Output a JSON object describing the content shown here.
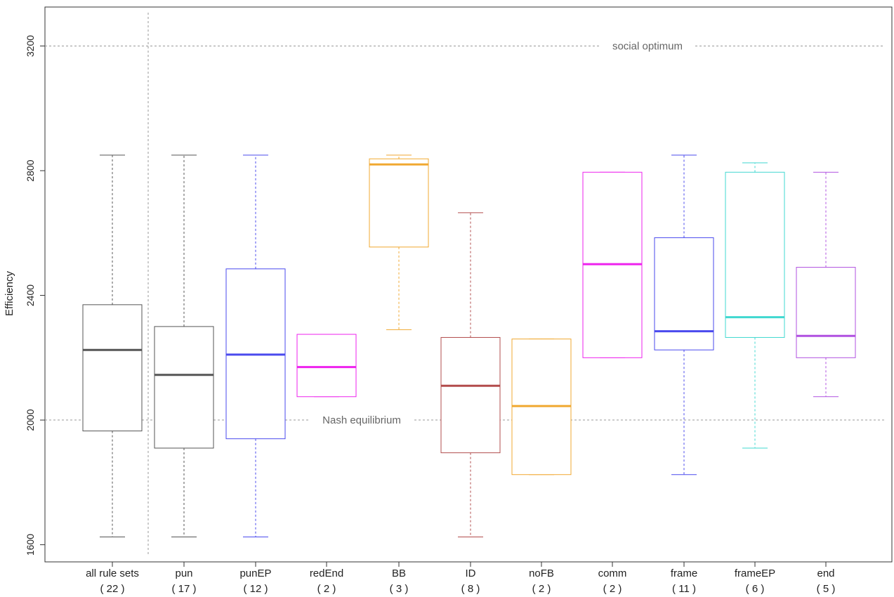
{
  "chart_data": {
    "type": "boxplot",
    "ylabel": "Efficiency",
    "ylim": [
      1545,
      3325
    ],
    "yticks": [
      1600,
      2000,
      2400,
      2800,
      3200
    ],
    "grid": false,
    "reference_lines": [
      {
        "label": "social optimum",
        "value": 3200
      },
      {
        "label": "Nash equilibrium",
        "value": 2000
      }
    ],
    "categories": [
      {
        "label": "all rule sets",
        "count": "( 22 )",
        "color": "#555555",
        "min": 1625,
        "q1": 1965,
        "median": 2225,
        "q3": 2370,
        "max": 2850
      },
      {
        "label": "pun",
        "count": "( 17 )",
        "color": "#555555",
        "min": 1625,
        "q1": 1910,
        "median": 2145,
        "q3": 2300,
        "max": 2850
      },
      {
        "label": "punEP",
        "count": "( 12 )",
        "color": "#4a4aee",
        "min": 1625,
        "q1": 1940,
        "median": 2210,
        "q3": 2485,
        "max": 2850
      },
      {
        "label": "redEnd",
        "count": "( 2 )",
        "color": "#ee22ee",
        "min": 2075,
        "q1": 2075,
        "median": 2170,
        "q3": 2275,
        "max": 2275
      },
      {
        "label": "BB",
        "count": "( 3 )",
        "color": "#f0a830",
        "min": 2290,
        "q1": 2555,
        "median": 2820,
        "q3": 2838,
        "max": 2850
      },
      {
        "label": "ID",
        "count": "( 8 )",
        "color": "#b24c4c",
        "min": 1625,
        "q1": 1895,
        "median": 2110,
        "q3": 2265,
        "max": 2665
      },
      {
        "label": "noFB",
        "count": "( 2 )",
        "color": "#f0a830",
        "min": 1825,
        "q1": 1825,
        "median": 2045,
        "q3": 2260,
        "max": 2260
      },
      {
        "label": "comm",
        "count": "( 2 )",
        "color": "#ee22ee",
        "min": 2200,
        "q1": 2200,
        "median": 2500,
        "q3": 2795,
        "max": 2795
      },
      {
        "label": "frame",
        "count": "( 11 )",
        "color": "#4a4aee",
        "min": 1825,
        "q1": 2225,
        "median": 2285,
        "q3": 2585,
        "max": 2850
      },
      {
        "label": "frameEP",
        "count": "( 6 )",
        "color": "#40d8d0",
        "min": 1910,
        "q1": 2265,
        "median": 2330,
        "q3": 2795,
        "max": 2825
      },
      {
        "label": "end",
        "count": "( 5 )",
        "color": "#b050e0",
        "min": 2075,
        "q1": 2200,
        "median": 2270,
        "q3": 2490,
        "max": 2795
      }
    ]
  }
}
